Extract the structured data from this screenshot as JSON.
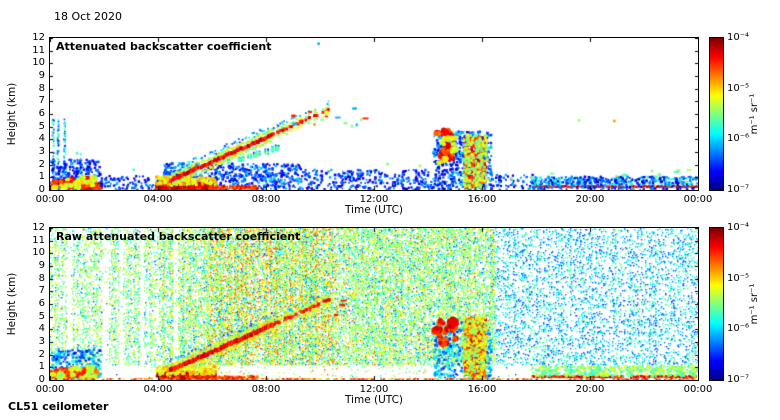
{
  "header": {
    "date": "18 Oct 2020"
  },
  "footer": {
    "instrument": "CL51 ceilometer"
  },
  "colorbar": {
    "tick_labels": [
      "10⁻⁴",
      "10⁻⁵",
      "10⁻⁶",
      "10⁻⁷"
    ],
    "units": "m⁻¹ sr⁻¹",
    "colormap": "jet",
    "scale_min": 1e-07,
    "scale_max": 0.0001,
    "log_scale": true
  },
  "chart_data": [
    {
      "type": "heatmap",
      "title": "Attenuated backscatter coefficient",
      "xlabel": "Time (UTC)",
      "ylabel": "Height (km)",
      "x_tick_labels": [
        "00:00",
        "04:00",
        "08:00",
        "12:00",
        "16:00",
        "20:00",
        "00:00"
      ],
      "y_tick_labels": [
        "0",
        "1",
        "2",
        "3",
        "4",
        "5",
        "6",
        "7",
        "8",
        "9",
        "10",
        "11",
        "12"
      ],
      "x_range_hours": [
        0,
        24
      ],
      "y_range_km": [
        0,
        12
      ],
      "value_range": [
        1e-07,
        0.0001
      ],
      "features": [
        {
          "kind": "columns",
          "times": [
            0.12,
            0.3,
            0.55
          ],
          "width_h": 0.07,
          "h": [
            0,
            5.6
          ],
          "density": 60,
          "v": [
            0.08,
            0.5
          ]
        },
        {
          "kind": "columns",
          "times": [
            1.15
          ],
          "width_h": 0.08,
          "h": [
            0,
            3.0
          ],
          "density": 30,
          "v": [
            0.08,
            0.45
          ]
        },
        {
          "kind": "speckle",
          "t": [
            0,
            1.9
          ],
          "h": [
            0,
            2.4
          ],
          "density": 55,
          "v": [
            0.05,
            0.32
          ],
          "size": 1.6
        },
        {
          "kind": "blobs",
          "t": [
            0.05,
            1.75
          ],
          "h": [
            0.05,
            0.85
          ],
          "count": 22,
          "v": [
            0.72,
            0.96
          ],
          "r": [
            2,
            4
          ]
        },
        {
          "kind": "blobs",
          "t": [
            0.05,
            1.75
          ],
          "h": [
            0.1,
            1.0
          ],
          "count": 14,
          "v": [
            0.5,
            0.68
          ],
          "r": [
            1.5,
            3
          ]
        },
        {
          "kind": "speckle",
          "t": [
            1.9,
            4.2
          ],
          "h": [
            0,
            1.1
          ],
          "density": 40,
          "v": [
            0.05,
            0.3
          ],
          "size": 1.5
        },
        {
          "kind": "speckle",
          "t": [
            4.2,
            9.3
          ],
          "h": [
            0,
            2.1
          ],
          "density": 55,
          "v": [
            0.05,
            0.34
          ],
          "size": 1.6
        },
        {
          "kind": "band",
          "t": [
            3.95,
            6.15
          ],
          "h": [
            0,
            0.55
          ],
          "density": 260,
          "v": [
            0.78,
            0.97
          ],
          "size": 2.2
        },
        {
          "kind": "band",
          "t": [
            3.95,
            6.15
          ],
          "h": [
            0.4,
            1.05
          ],
          "density": 110,
          "v": [
            0.55,
            0.75
          ],
          "size": 2
        },
        {
          "kind": "band",
          "t": [
            6.15,
            7.7
          ],
          "h": [
            0,
            0.3
          ],
          "density": 150,
          "v": [
            0.7,
            0.92
          ],
          "size": 2
        },
        {
          "kind": "streak",
          "from": [
            4.45,
            0.75
          ],
          "to": [
            8.25,
            4.35
          ],
          "thick": 0.3,
          "coreV": [
            0.8,
            0.97
          ],
          "haloV": [
            0.45,
            0.7
          ],
          "gap": 0.05
        },
        {
          "kind": "streak",
          "from": [
            8.25,
            4.35
          ],
          "to": [
            10.35,
            6.35
          ],
          "thick": 0.24,
          "coreV": [
            0.78,
            0.95
          ],
          "haloV": [
            0.45,
            0.65
          ],
          "gap": 0.55
        },
        {
          "kind": "streak",
          "from": [
            6.6,
            2.15
          ],
          "to": [
            8.5,
            3.35
          ],
          "thick": 0.1,
          "coreV": [
            0.45,
            0.62
          ],
          "haloV": [
            0.3,
            0.5
          ],
          "gap": 0.6
        },
        {
          "kind": "dashes",
          "t": [
            8.9,
            11.6
          ],
          "h": [
            4.9,
            6.6
          ],
          "count": 16,
          "vs": [
            0.5,
            0.62,
            0.85,
            0.3,
            0.75
          ]
        },
        {
          "kind": "speckle",
          "t": [
            9.3,
            14.2
          ],
          "h": [
            0,
            1.6
          ],
          "density": 40,
          "v": [
            0.05,
            0.3
          ],
          "size": 1.5
        },
        {
          "kind": "speckle",
          "t": [
            14.2,
            16.35
          ],
          "h": [
            0,
            4.6
          ],
          "density": 60,
          "v": [
            0.05,
            0.35
          ],
          "size": 1.6
        },
        {
          "kind": "blobs",
          "t": [
            14.35,
            15.1
          ],
          "h": [
            2.3,
            4.7
          ],
          "count": 13,
          "v": [
            0.75,
            0.95
          ],
          "r": [
            2,
            4
          ]
        },
        {
          "kind": "blobs",
          "t": [
            14.3,
            15.15
          ],
          "h": [
            2.0,
            4.8
          ],
          "count": 10,
          "v": [
            0.5,
            0.68
          ],
          "r": [
            1.5,
            3
          ]
        },
        {
          "kind": "band",
          "t": [
            15.35,
            16.15
          ],
          "h": [
            0.2,
            4.2
          ],
          "density": 80,
          "v": [
            0.7,
            0.95
          ],
          "size": 2.2
        },
        {
          "kind": "band",
          "t": [
            15.3,
            16.2
          ],
          "h": [
            0.1,
            4.4
          ],
          "density": 60,
          "v": [
            0.45,
            0.66
          ],
          "size": 1.8
        },
        {
          "kind": "speckle",
          "t": [
            16.35,
            18.0
          ],
          "h": [
            0,
            1.2
          ],
          "density": 30,
          "v": [
            0.05,
            0.3
          ],
          "size": 1.5
        },
        {
          "kind": "line",
          "t": [
            17.85,
            24
          ],
          "hc": 0.27,
          "thick": 0.18,
          "v": [
            0.78,
            0.97
          ],
          "coverage": 0.92,
          "gaps": [
            [
              21.25,
              21.5
            ]
          ]
        },
        {
          "kind": "speckle",
          "t": [
            17.85,
            24
          ],
          "h": [
            0.35,
            1.05
          ],
          "density": 55,
          "v": [
            0.18,
            0.5
          ],
          "size": 1.5
        },
        {
          "kind": "speckle",
          "t": [
            17.85,
            24
          ],
          "h": [
            0,
            1.05
          ],
          "density": 40,
          "v": [
            0.05,
            0.3
          ],
          "size": 1.5
        },
        {
          "kind": "dashes",
          "t": [
            18.2,
            23.8
          ],
          "h": [
            1.1,
            1.7
          ],
          "count": 8,
          "vs": [
            0.5,
            0.45,
            0.55
          ]
        },
        {
          "kind": "points",
          "pts": [
            [
              9.95,
              11.55,
              0.3
            ],
            [
              12.5,
              2.05,
              0.5
            ],
            [
              13.7,
              1.9,
              0.52
            ],
            [
              19.6,
              5.5,
              0.55
            ],
            [
              20.9,
              5.45,
              0.72
            ],
            [
              22.3,
              1.5,
              0.5
            ],
            [
              1.0,
              2.9,
              0.45
            ],
            [
              17.1,
              0.9,
              0.5
            ],
            [
              3.1,
              1.6,
              0.45
            ]
          ]
        }
      ]
    },
    {
      "type": "heatmap",
      "title": "Raw attenuated backscatter coefficient",
      "xlabel": "Time (UTC)",
      "ylabel": "Height (km)",
      "x_tick_labels": [
        "00:00",
        "04:00",
        "08:00",
        "12:00",
        "16:00",
        "20:00",
        "00:00"
      ],
      "y_tick_labels": [
        "0",
        "1",
        "2",
        "3",
        "4",
        "5",
        "6",
        "7",
        "8",
        "9",
        "10",
        "11",
        "12"
      ],
      "x_range_hours": [
        0,
        24
      ],
      "y_range_km": [
        0,
        12
      ],
      "value_range": [
        1e-07,
        0.0001
      ],
      "noise": {
        "surface_white_km": 1.25,
        "bands": [
          {
            "t": [
              0,
              4.1
            ],
            "p": 0.2,
            "warm": 0
          },
          {
            "t": [
              4.1,
              5.9
            ],
            "p": 0.3,
            "warm": 0.06
          },
          {
            "t": [
              5.9,
              10.6
            ],
            "p": 0.4,
            "warm": 0.35
          },
          {
            "t": [
              10.6,
              16.5
            ],
            "p": 0.33,
            "warm": 0.08
          },
          {
            "t": [
              16.5,
              24.01
            ],
            "p": 0.15,
            "warm": 0
          }
        ],
        "white_stripes": [
          [
            0.62,
            0.78
          ],
          [
            1.9,
            2.15
          ],
          [
            2.52,
            2.7
          ],
          [
            3.3,
            3.47
          ],
          [
            4.55,
            4.72
          ]
        ],
        "v_cool": [
          0.18,
          0.5
        ],
        "v_main": [
          0.42,
          0.62
        ],
        "v_warm": [
          0.6,
          0.8
        ]
      },
      "features": [
        {
          "kind": "speckle",
          "t": [
            0,
            1.9
          ],
          "h": [
            0,
            2.4
          ],
          "density": 50,
          "v": [
            0.1,
            0.4
          ],
          "size": 1.6
        },
        {
          "kind": "blobs",
          "t": [
            0.05,
            1.75
          ],
          "h": [
            0.05,
            0.85
          ],
          "count": 24,
          "v": [
            0.72,
            0.96
          ],
          "r": [
            2,
            4
          ]
        },
        {
          "kind": "blobs",
          "t": [
            0.05,
            1.75
          ],
          "h": [
            0.1,
            1.0
          ],
          "count": 14,
          "v": [
            0.5,
            0.68
          ],
          "r": [
            1.5,
            3
          ]
        },
        {
          "kind": "band",
          "t": [
            3.95,
            6.15
          ],
          "h": [
            0,
            0.6
          ],
          "density": 260,
          "v": [
            0.78,
            0.97
          ],
          "size": 2.2
        },
        {
          "kind": "band",
          "t": [
            3.95,
            6.15
          ],
          "h": [
            0.45,
            1.1
          ],
          "density": 110,
          "v": [
            0.55,
            0.75
          ],
          "size": 2
        },
        {
          "kind": "band",
          "t": [
            6.15,
            7.7
          ],
          "h": [
            0,
            0.3
          ],
          "density": 120,
          "v": [
            0.7,
            0.92
          ],
          "size": 2
        },
        {
          "kind": "streak",
          "from": [
            4.45,
            0.75
          ],
          "to": [
            8.25,
            4.35
          ],
          "thick": 0.34,
          "coreV": [
            0.8,
            0.97
          ],
          "haloV": [
            0.5,
            0.72
          ],
          "gap": 0.05
        },
        {
          "kind": "streak",
          "from": [
            8.25,
            4.35
          ],
          "to": [
            10.35,
            6.35
          ],
          "thick": 0.26,
          "coreV": [
            0.78,
            0.95
          ],
          "haloV": [
            0.5,
            0.68
          ],
          "gap": 0.5
        },
        {
          "kind": "dashes",
          "t": [
            8.9,
            11.6
          ],
          "h": [
            4.9,
            6.6
          ],
          "count": 12,
          "vs": [
            0.55,
            0.65,
            0.85
          ]
        },
        {
          "kind": "speckle",
          "t": [
            14.2,
            16.35
          ],
          "h": [
            0,
            4.6
          ],
          "density": 45,
          "v": [
            0.15,
            0.45
          ],
          "size": 1.6
        },
        {
          "kind": "blobs",
          "t": [
            14.35,
            15.1
          ],
          "h": [
            2.3,
            4.7
          ],
          "count": 12,
          "v": [
            0.75,
            0.95
          ],
          "r": [
            2,
            4
          ]
        },
        {
          "kind": "band",
          "t": [
            15.35,
            16.15
          ],
          "h": [
            0.2,
            4.9
          ],
          "density": 80,
          "v": [
            0.7,
            0.95
          ],
          "size": 2.2
        },
        {
          "kind": "band",
          "t": [
            15.3,
            16.2
          ],
          "h": [
            0.1,
            5.0
          ],
          "density": 55,
          "v": [
            0.48,
            0.66
          ],
          "size": 1.8
        },
        {
          "kind": "line",
          "t": [
            17.85,
            24
          ],
          "hc": 0.27,
          "thick": 0.2,
          "v": [
            0.78,
            0.97
          ],
          "coverage": 0.92,
          "gaps": [
            [
              21.25,
              21.5
            ]
          ]
        },
        {
          "kind": "speckle",
          "t": [
            17.85,
            24
          ],
          "h": [
            0.3,
            1.1
          ],
          "density": 90,
          "v": [
            0.4,
            0.62
          ],
          "size": 1.6
        },
        {
          "kind": "line",
          "t": [
            0,
            24
          ],
          "hc": 0.07,
          "thick": 0.1,
          "v": [
            0.65,
            0.9
          ],
          "coverage": 0.5
        }
      ]
    }
  ]
}
